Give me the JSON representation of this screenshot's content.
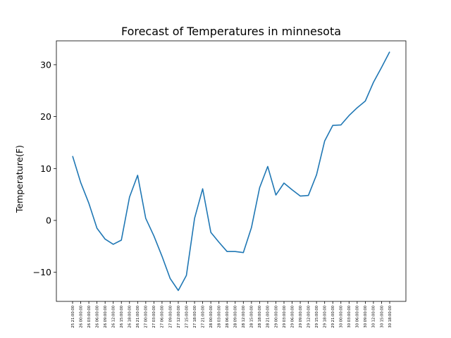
{
  "chart_data": {
    "type": "line",
    "title": "Forecast of Temperatures in minnesota",
    "xlabel": "",
    "ylabel": "Temperature(F)",
    "ylim": [
      -15.6,
      34.6
    ],
    "yticks": [
      -10,
      0,
      10,
      20,
      30
    ],
    "grid": false,
    "legend": "none",
    "line_color": "#1f77b4",
    "categories": [
      "25 21:00:00",
      "26 00:00:00",
      "26 03:00:00",
      "26 06:00:00",
      "26 09:00:00",
      "26 12:00:00",
      "26 15:00:00",
      "26 18:00:00",
      "26 21:00:00",
      "27 00:00:00",
      "27 03:00:00",
      "27 06:00:00",
      "27 09:00:00",
      "27 12:00:00",
      "27 15:00:00",
      "27 18:00:00",
      "27 21:00:00",
      "28 00:00:00",
      "28 03:00:00",
      "28 06:00:00",
      "28 09:00:00",
      "28 12:00:00",
      "28 15:00:00",
      "28 18:00:00",
      "28 21:00:00",
      "29 00:00:00",
      "29 03:00:00",
      "29 06:00:00",
      "29 09:00:00",
      "29 12:00:00",
      "29 15:00:00",
      "29 18:00:00",
      "29 21:00:00",
      "30 00:00:00",
      "30 03:00:00",
      "30 06:00:00",
      "30 09:00:00",
      "30 12:00:00",
      "30 15:00:00",
      "30 18:00:00"
    ],
    "series": [
      {
        "name": "",
        "values": [
          12.4,
          7.3,
          3.3,
          -1.5,
          -3.6,
          -4.6,
          -3.8,
          4.5,
          8.7,
          0.4,
          -3.0,
          -6.9,
          -11.2,
          -13.5,
          -10.6,
          0.4,
          6.1,
          -2.3,
          -4.2,
          -6.0,
          -6.0,
          -6.2,
          -1.4,
          6.3,
          10.4,
          4.9,
          7.2,
          5.9,
          4.7,
          4.8,
          8.8,
          15.3,
          18.3,
          18.4,
          20.2,
          21.7,
          23.0,
          26.6,
          29.5,
          32.5
        ]
      }
    ]
  }
}
